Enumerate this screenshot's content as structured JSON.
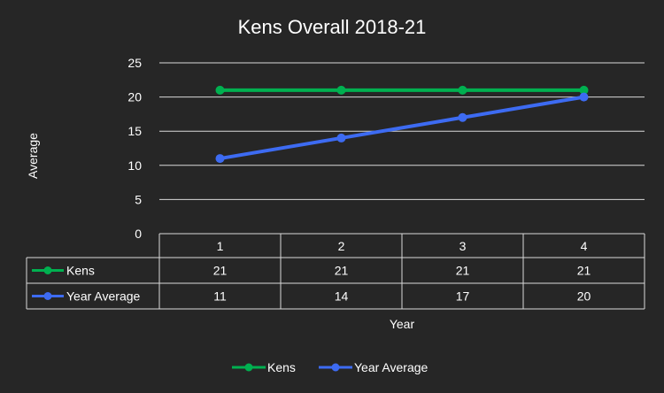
{
  "chart_data": {
    "type": "line",
    "title": "Kens Overall 2018-21",
    "xlabel": "Year",
    "ylabel": "Average",
    "categories": [
      "1",
      "2",
      "3",
      "4"
    ],
    "ylim": [
      0,
      25
    ],
    "yticks": [
      0,
      5,
      10,
      15,
      20,
      25
    ],
    "grid": true,
    "legend_position": "bottom",
    "data_table": true,
    "series": [
      {
        "name": "Kens",
        "color": "#00b050",
        "values": [
          21,
          21,
          21,
          21
        ]
      },
      {
        "name": "Year Average",
        "color": "#3d6bf2",
        "values": [
          11,
          14,
          17,
          20
        ]
      }
    ]
  },
  "colors": {
    "background": "#262626",
    "gridline": "#d9d9d9",
    "text": "#ffffff"
  }
}
